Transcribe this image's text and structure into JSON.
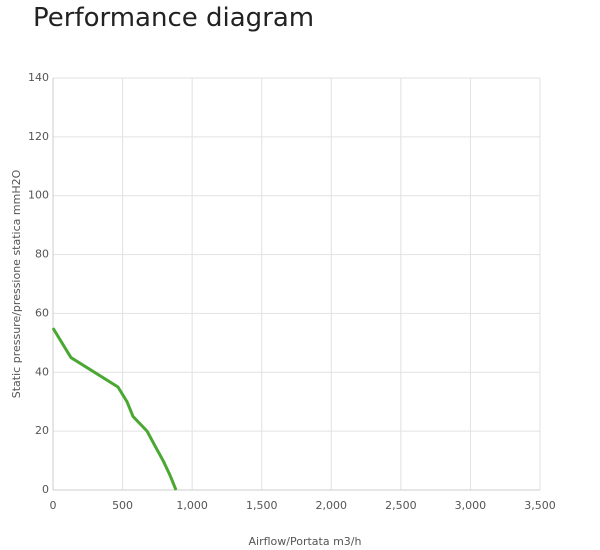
{
  "chart_data": {
    "type": "line",
    "title": "Performance diagram",
    "xlabel": "Airflow/Portata m3/h",
    "ylabel": "Static pressure/pressione statica mmH2O",
    "x": [
      0,
      129,
      467,
      532,
      575,
      676,
      733,
      791,
      841,
      884
    ],
    "series": [
      {
        "name": "Performance",
        "color": "#4aa832",
        "values": [
          55,
          45,
          35,
          30,
          25,
          20,
          15,
          10,
          5,
          0
        ]
      }
    ],
    "xlim": [
      0,
      3500
    ],
    "xticks": [
      0,
      500,
      {
        "value": 1000,
        "label": "1,000"
      },
      {
        "value": 1500,
        "label": "1,500"
      },
      {
        "value": 2000,
        "label": "2,000"
      },
      {
        "value": 2500,
        "label": "2,500"
      },
      {
        "value": 3000,
        "label": "3,000"
      },
      {
        "value": 3500,
        "label": "3,500"
      }
    ],
    "ylim": [
      0,
      140
    ],
    "yticks": [
      0,
      20,
      40,
      60,
      80,
      100,
      120,
      140
    ],
    "grid": true
  }
}
